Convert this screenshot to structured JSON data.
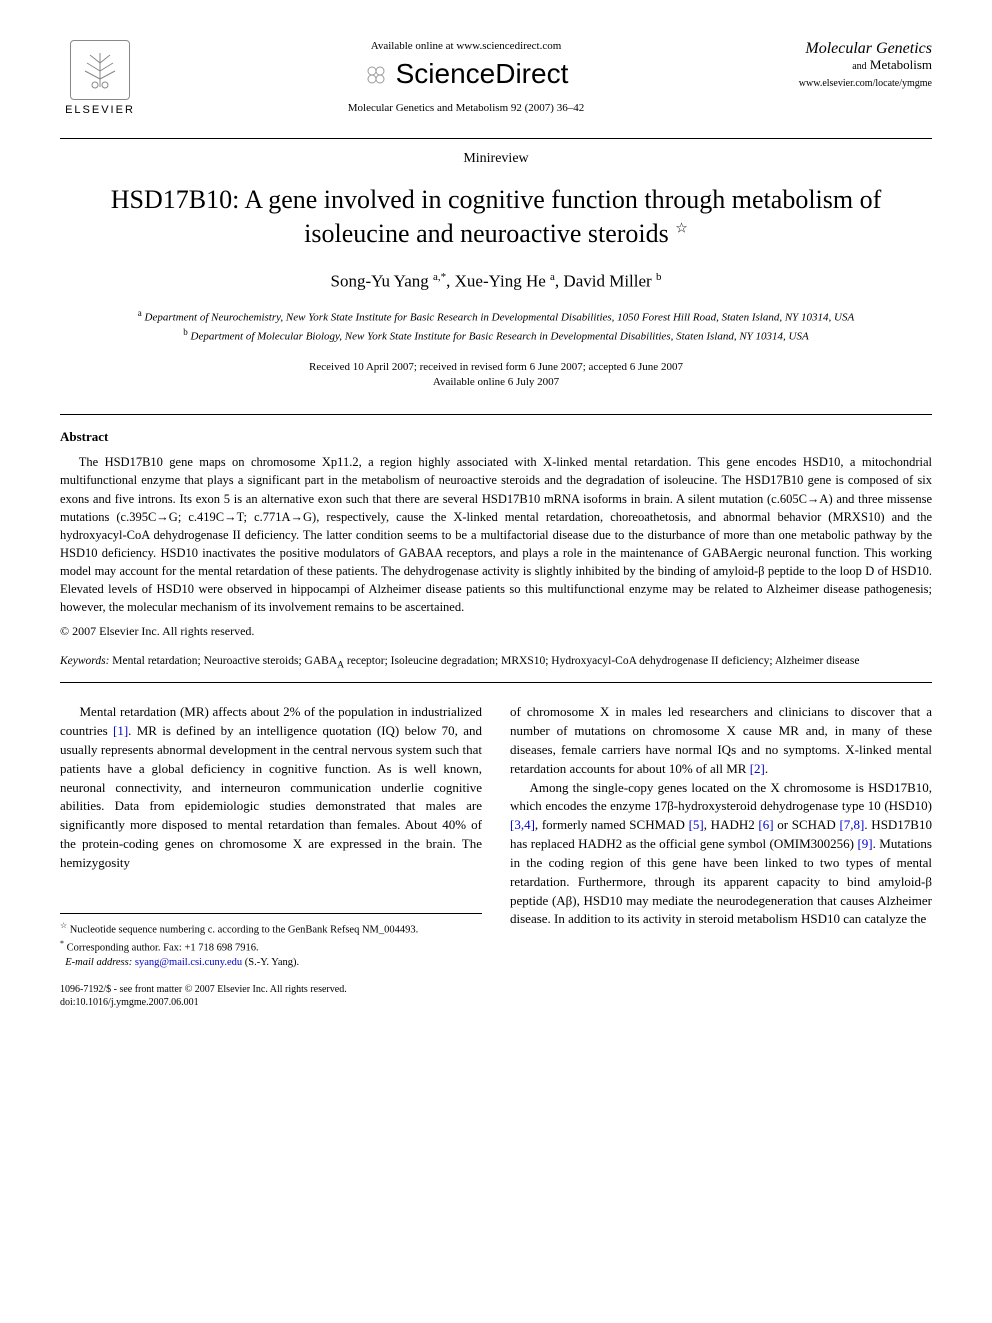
{
  "header": {
    "available_online": "Available online at www.sciencedirect.com",
    "sciencedirect_label": "ScienceDirect",
    "journal_ref": "Molecular Genetics and Metabolism 92 (2007) 36–42",
    "elsevier_label": "ELSEVIER",
    "journal_logo_line1": "Molecular Genetics",
    "journal_logo_line2": "and Metabolism",
    "journal_url": "www.elsevier.com/locate/ymgme"
  },
  "article": {
    "type": "Minireview",
    "title": "HSD17B10: A gene involved in cognitive function through metabolism of isoleucine and neuroactive steroids",
    "title_star": "☆",
    "authors_html": "Song-Yu Yang <sup>a,*</sup>, Xue-Ying He <sup>a</sup>, David Miller <sup>b</sup>",
    "affil_a": "Department of Neurochemistry, New York State Institute for Basic Research in Developmental Disabilities, 1050 Forest Hill Road, Staten Island, NY 10314, USA",
    "affil_b": "Department of Molecular Biology, New York State Institute for Basic Research in Developmental Disabilities, Staten Island, NY 10314, USA",
    "dates_line1": "Received 10 April 2007; received in revised form 6 June 2007; accepted 6 June 2007",
    "dates_line2": "Available online 6 July 2007"
  },
  "abstract": {
    "heading": "Abstract",
    "text": "The HSD17B10 gene maps on chromosome Xp11.2, a region highly associated with X-linked mental retardation. This gene encodes HSD10, a mitochondrial multifunctional enzyme that plays a significant part in the metabolism of neuroactive steroids and the degradation of isoleucine. The HSD17B10 gene is composed of six exons and five introns. Its exon 5 is an alternative exon such that there are several HSD17B10 mRNA isoforms in brain. A silent mutation (c.605C→A) and three missense mutations (c.395C→G; c.419C→T; c.771A→G), respectively, cause the X-linked mental retardation, choreoathetosis, and abnormal behavior (MRXS10) and the hydroxyacyl-CoA dehydrogenase II deficiency. The latter condition seems to be a multifactorial disease due to the disturbance of more than one metabolic pathway by the HSD10 deficiency. HSD10 inactivates the positive modulators of GABAA receptors, and plays a role in the maintenance of GABAergic neuronal function. This working model may account for the mental retardation of these patients. The dehydrogenase activity is slightly inhibited by the binding of amyloid-β peptide to the loop D of HSD10. Elevated levels of HSD10 were observed in hippocampi of Alzheimer disease patients so this multifunctional enzyme may be related to Alzheimer disease pathogenesis; however, the molecular mechanism of its involvement remains to be ascertained.",
    "copyright": "© 2007 Elsevier Inc. All rights reserved."
  },
  "keywords": {
    "label": "Keywords:",
    "text": "Mental retardation; Neuroactive steroids; GABAA receptor; Isoleucine degradation; MRXS10; Hydroxyacyl-CoA dehydrogenase II deficiency; Alzheimer disease"
  },
  "body": {
    "col1_p1": "Mental retardation (MR) affects about 2% of the population in industrialized countries [1]. MR is defined by an intelligence quotation (IQ) below 70, and usually represents abnormal development in the central nervous system such that patients have a global deficiency in cognitive function. As is well known, neuronal connectivity, and interneuron communication underlie cognitive abilities. Data from epidemiologic studies demonstrated that males are significantly more disposed to mental retardation than females. About 40% of the protein-coding genes on chromosome X are expressed in the brain. The hemizygosity",
    "col2_p1": "of chromosome X in males led researchers and clinicians to discover that a number of mutations on chromosome X cause MR and, in many of these diseases, female carriers have normal IQs and no symptoms. X-linked mental retardation accounts for about 10% of all MR [2].",
    "col2_p2": "Among the single-copy genes located on the X chromosome is HSD17B10, which encodes the enzyme 17β-hydroxysteroid dehydrogenase type 10 (HSD10) [3,4], formerly named SCHMAD [5], HADH2 [6] or SCHAD [7,8]. HSD17B10 has replaced HADH2 as the official gene symbol (OMIM300256) [9]. Mutations in the coding region of this gene have been linked to two types of mental retardation. Furthermore, through its apparent capacity to bind amyloid-β peptide (Aβ), HSD10 may mediate the neurodegeneration that causes Alzheimer disease. In addition to its activity in steroid metabolism HSD10 can catalyze the"
  },
  "footnotes": {
    "star": "Nucleotide sequence numbering c. according to the GenBank Refseq NM_004493.",
    "corr_label": "Corresponding author. Fax: +1 718 698 7916.",
    "email_label": "E-mail address:",
    "email": "syang@mail.csi.cuny.edu",
    "email_suffix": "(S.-Y. Yang)."
  },
  "footer": {
    "line1": "1096-7192/$ - see front matter © 2007 Elsevier Inc. All rights reserved.",
    "line2": "doi:10.1016/j.ymgme.2007.06.001"
  },
  "colors": {
    "text": "#000000",
    "link": "#0000cc",
    "background": "#ffffff",
    "rule": "#000000"
  },
  "typography": {
    "body_fontsize_pt": 10,
    "title_fontsize_pt": 20,
    "authors_fontsize_pt": 13,
    "abstract_fontsize_pt": 9.5,
    "footnote_fontsize_pt": 8
  }
}
